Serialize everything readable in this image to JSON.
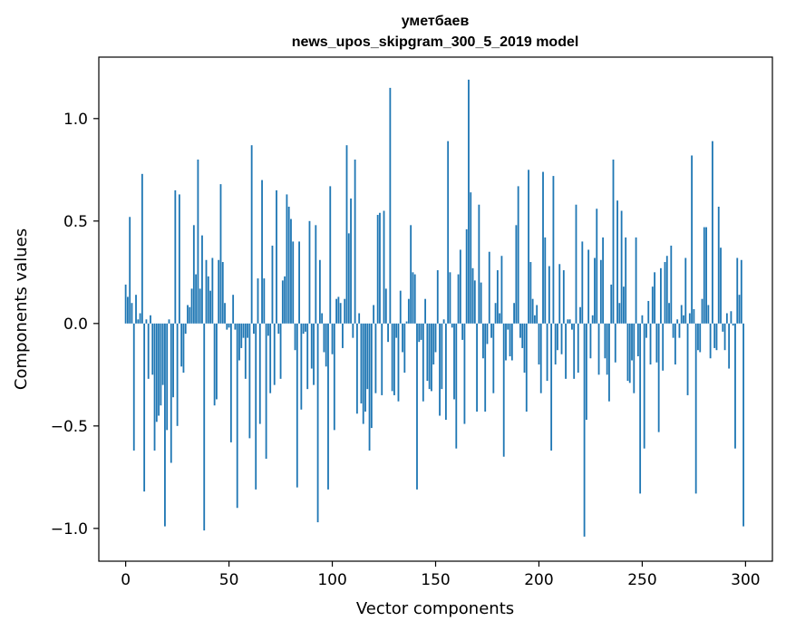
{
  "chart_data": {
    "type": "bar",
    "title": "уметбаев",
    "subtitle": "news_upos_skipgram_300_5_2019 model",
    "xlabel": "Vector components",
    "ylabel": "Components values",
    "xlim": [
      -13,
      313
    ],
    "ylim": [
      -1.16,
      1.3
    ],
    "xticks": [
      0,
      50,
      100,
      150,
      200,
      250,
      300
    ],
    "xtick_labels": [
      "0",
      "50",
      "100",
      "150",
      "200",
      "250",
      "300"
    ],
    "yticks": [
      -1.0,
      -0.5,
      0.0,
      0.5,
      1.0
    ],
    "ytick_labels": [
      "−1.0",
      "−0.5",
      "0.0",
      "0.5",
      "1.0"
    ],
    "grid": false,
    "bar_color": "#1f77b4",
    "x": "0..299",
    "values": [
      0.19,
      0.13,
      0.52,
      0.1,
      -0.62,
      0.14,
      0.02,
      0.05,
      0.73,
      -0.82,
      0.02,
      -0.27,
      0.04,
      -0.25,
      -0.62,
      -0.48,
      -0.45,
      -0.4,
      -0.3,
      -0.99,
      -0.52,
      0.02,
      -0.68,
      -0.36,
      0.65,
      -0.5,
      0.63,
      -0.21,
      -0.24,
      -0.05,
      0.09,
      0.08,
      0.17,
      0.48,
      0.24,
      0.8,
      0.17,
      0.43,
      -1.01,
      0.31,
      0.23,
      0.16,
      0.32,
      -0.4,
      -0.37,
      0.31,
      0.68,
      0.3,
      0.1,
      -0.03,
      -0.02,
      -0.58,
      0.14,
      -0.03,
      -0.9,
      -0.18,
      -0.12,
      -0.07,
      -0.27,
      -0.07,
      -0.56,
      0.87,
      -0.05,
      -0.81,
      0.22,
      -0.49,
      0.7,
      0.22,
      -0.66,
      -0.06,
      -0.34,
      0.38,
      -0.3,
      0.65,
      -0.05,
      -0.27,
      0.21,
      0.23,
      0.63,
      0.57,
      0.51,
      0.4,
      -0.13,
      -0.8,
      0.4,
      -0.42,
      -0.05,
      -0.04,
      -0.32,
      0.5,
      -0.22,
      -0.3,
      0.48,
      -0.97,
      0.31,
      0.05,
      -0.14,
      -0.21,
      -0.81,
      0.67,
      -0.15,
      -0.52,
      0.12,
      0.13,
      0.1,
      -0.12,
      0.12,
      0.87,
      0.44,
      0.61,
      -0.07,
      0.8,
      -0.44,
      0.05,
      -0.39,
      -0.49,
      -0.43,
      -0.32,
      -0.62,
      -0.51,
      0.09,
      -0.34,
      0.53,
      0.54,
      -0.35,
      0.55,
      0.17,
      -0.09,
      1.15,
      -0.33,
      -0.35,
      -0.07,
      -0.38,
      0.16,
      -0.14,
      -0.24,
      0.01,
      0.12,
      0.48,
      0.25,
      0.24,
      -0.81,
      -0.09,
      -0.08,
      -0.38,
      0.12,
      -0.28,
      -0.32,
      -0.33,
      -0.2,
      -0.14,
      0.26,
      -0.45,
      -0.32,
      0.02,
      -0.47,
      0.89,
      0.25,
      -0.02,
      -0.37,
      -0.61,
      0.24,
      0.36,
      -0.08,
      -0.49,
      0.46,
      1.19,
      0.64,
      0.27,
      0.21,
      -0.43,
      0.58,
      0.2,
      -0.17,
      -0.43,
      -0.1,
      0.35,
      -0.07,
      -0.34,
      0.1,
      0.26,
      0.05,
      0.33,
      -0.65,
      -0.18,
      -0.03,
      -0.16,
      -0.18,
      0.1,
      0.48,
      0.67,
      -0.07,
      -0.12,
      -0.24,
      -0.43,
      0.75,
      0.3,
      0.12,
      0.04,
      0.09,
      -0.2,
      -0.34,
      0.74,
      0.42,
      -0.28,
      0.28,
      -0.62,
      0.72,
      -0.2,
      -0.13,
      0.29,
      -0.15,
      0.26,
      -0.27,
      0.02,
      0.02,
      -0.03,
      -0.27,
      0.58,
      -0.24,
      0.08,
      0.4,
      -1.04,
      -0.47,
      0.36,
      -0.17,
      0.04,
      0.32,
      0.56,
      -0.25,
      0.31,
      0.42,
      -0.17,
      -0.25,
      -0.38,
      0.19,
      0.8,
      -0.19,
      0.6,
      0.1,
      0.55,
      0.18,
      0.42,
      -0.28,
      -0.29,
      -0.18,
      -0.34,
      0.42,
      -0.16,
      -0.83,
      0.04,
      -0.61,
      -0.07,
      0.11,
      -0.2,
      0.18,
      0.25,
      -0.19,
      -0.53,
      0.27,
      -0.23,
      0.3,
      0.33,
      0.1,
      0.38,
      -0.07,
      -0.2,
      0.02,
      -0.07,
      0.09,
      0.04,
      0.32,
      -0.35,
      0.05,
      0.82,
      0.07,
      -0.83,
      -0.13,
      -0.14,
      0.12,
      0.47,
      0.47,
      0.09,
      -0.17,
      0.89,
      -0.12,
      -0.13,
      0.57,
      0.37,
      -0.04,
      -0.13,
      0.05,
      -0.22,
      0.06,
      -0.01,
      -0.61,
      0.32,
      0.14,
      0.31,
      -0.99
    ]
  }
}
